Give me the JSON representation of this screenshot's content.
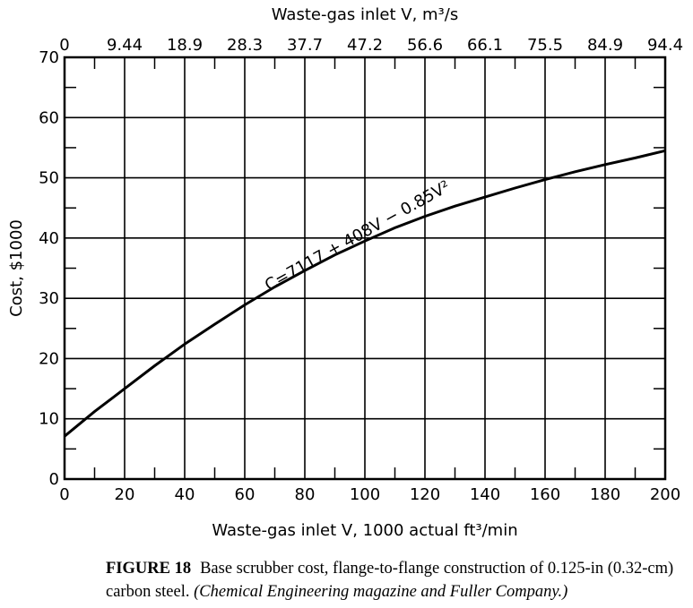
{
  "chart_data": {
    "type": "line",
    "title": "",
    "xlabel": "Waste-gas inlet V, 1000 actual ft³/min",
    "ylabel": "Cost, $1000",
    "x2label": "Waste-gas inlet V, m³/s",
    "xlim": [
      0,
      200
    ],
    "ylim": [
      0,
      70
    ],
    "x_ticks": [
      "0",
      "20",
      "40",
      "60",
      "80",
      "100",
      "120",
      "140",
      "160",
      "180",
      "200"
    ],
    "y_ticks": [
      "0",
      "10",
      "20",
      "30",
      "40",
      "50",
      "60",
      "70"
    ],
    "x2_ticks": [
      "0",
      "9.44",
      "18.9",
      "28.3",
      "37.7",
      "47.2",
      "56.6",
      "66.1",
      "75.5",
      "84.9",
      "94.4"
    ],
    "grid": true,
    "series": [
      {
        "x": [
          0,
          10,
          20,
          30,
          40,
          50,
          60,
          70,
          80,
          90,
          100,
          110,
          120,
          130,
          140,
          150,
          160,
          170,
          180,
          190,
          200
        ],
        "y": [
          7.1,
          11.2,
          15.0,
          18.8,
          22.4,
          25.7,
          28.9,
          31.9,
          34.6,
          37.2,
          39.5,
          41.7,
          43.6,
          45.3,
          46.8,
          48.3,
          49.7,
          51.0,
          52.2,
          53.3,
          54.5
        ]
      }
    ],
    "annotations": [
      {
        "text": "C=7117 + 408V − 0.85V²"
      }
    ]
  },
  "caption": {
    "label": "FIGURE 18",
    "text": "Base scrubber cost, flange-to-flange construction of 0.125-in (0.32-cm) carbon steel.",
    "source": "(Chemical Engineering magazine and Fuller Company.)"
  }
}
